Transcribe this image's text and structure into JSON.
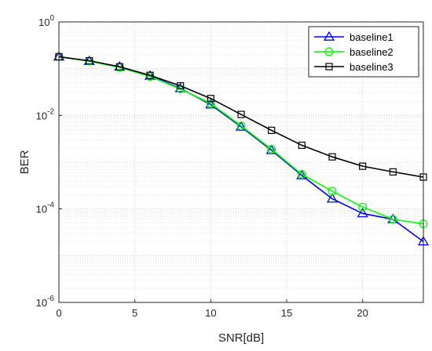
{
  "chart_data": {
    "type": "line",
    "title": "",
    "xlabel": "SNR[dB]",
    "ylabel": "BER",
    "x": [
      0,
      2,
      4,
      6,
      8,
      10,
      12,
      14,
      16,
      18,
      20,
      22,
      24
    ],
    "xlim": [
      0,
      24
    ],
    "ylim": [
      1e-06,
      1
    ],
    "yscale": "log",
    "grid": "on (major and minor)",
    "legend_position": "top-right",
    "xticks": [
      "0",
      "5",
      "10",
      "15",
      "20"
    ],
    "xtick_values": [
      0,
      5,
      10,
      15,
      20
    ],
    "yticks": [
      {
        "base": "10",
        "exp": "0"
      },
      {
        "base": "10",
        "exp": "-2"
      },
      {
        "base": "10",
        "exp": "-4"
      },
      {
        "base": "10",
        "exp": "-6"
      }
    ],
    "ytick_values": [
      1,
      0.01,
      0.0001,
      1e-06
    ],
    "series": [
      {
        "name": "baseline1",
        "color": "#0000ff",
        "marker": "triangle",
        "values": [
          0.18,
          0.145,
          0.11,
          0.07,
          0.038,
          0.017,
          0.0057,
          0.0018,
          0.00052,
          0.000165,
          8e-05,
          6e-05,
          2e-05
        ]
      },
      {
        "name": "baseline2",
        "color": "#00ff00",
        "marker": "circle",
        "values": [
          0.18,
          0.145,
          0.107,
          0.068,
          0.037,
          0.018,
          0.006,
          0.0019,
          0.00055,
          0.00024,
          0.00011,
          6e-05,
          4.8e-05
        ]
      },
      {
        "name": "baseline3",
        "color": "#000000",
        "marker": "square",
        "values": [
          0.18,
          0.148,
          0.11,
          0.072,
          0.043,
          0.023,
          0.0105,
          0.0048,
          0.0023,
          0.0013,
          0.00082,
          0.00062,
          0.00048
        ]
      }
    ]
  }
}
